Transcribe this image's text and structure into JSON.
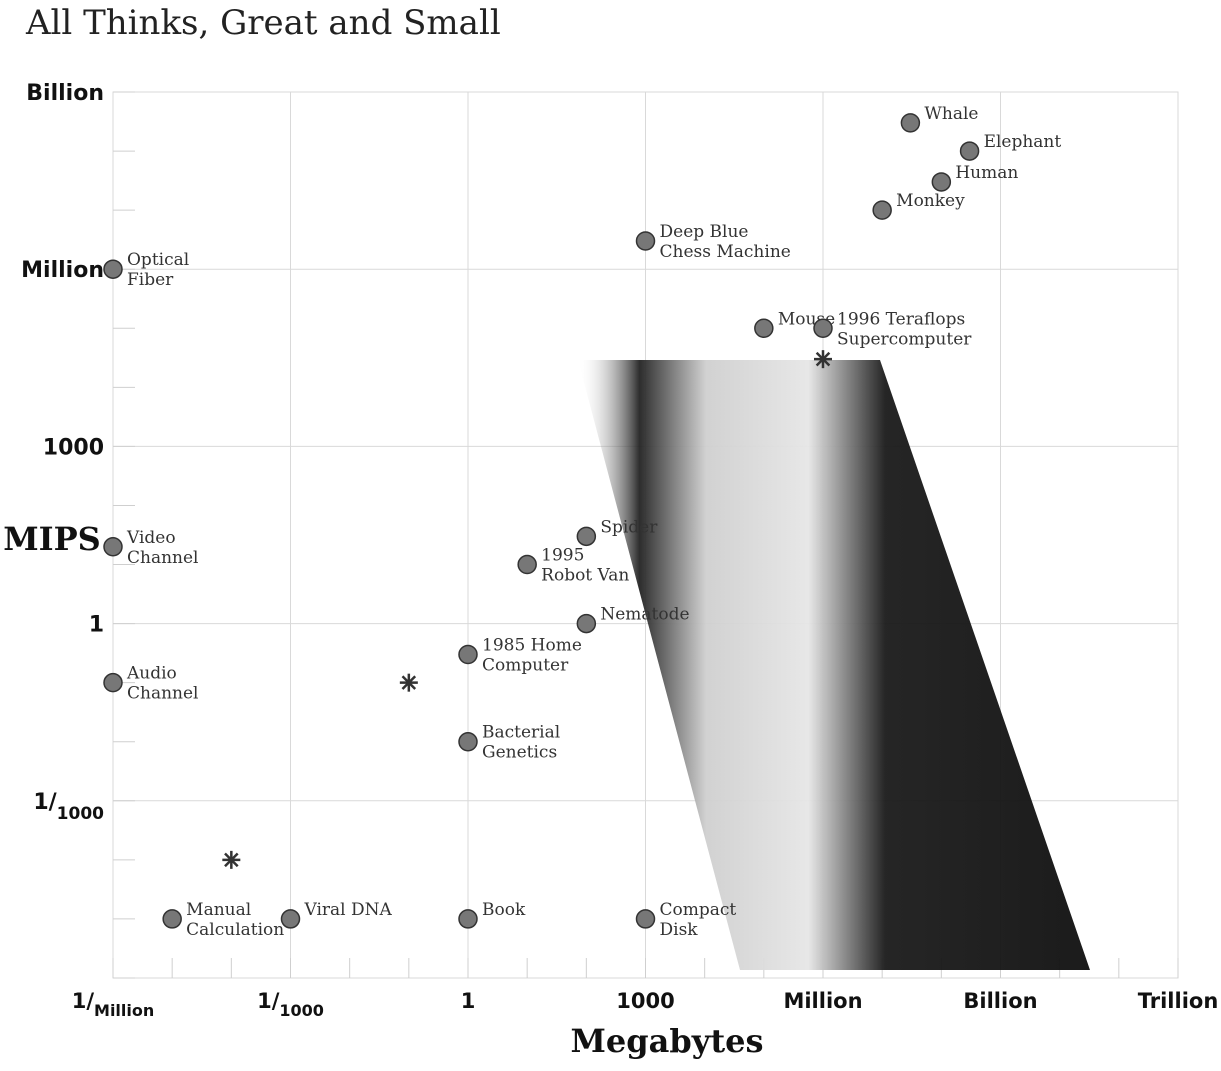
{
  "chart_data": {
    "type": "scatter",
    "title": "All Thinks, Great and Small",
    "xlabel": "Megabytes",
    "ylabel": "MIPS",
    "x_scale": "log",
    "y_scale": "log",
    "xlim": [
      1e-06,
      1000000000000.0
    ],
    "ylim": [
      1e-06,
      1000000000.0
    ],
    "grid": true,
    "x_ticks": [
      {
        "value": 1e-06,
        "main": "1/",
        "sub": "Million"
      },
      {
        "value": 0.001,
        "main": "1/",
        "sub": "1000"
      },
      {
        "value": 1,
        "main": "1",
        "sub": ""
      },
      {
        "value": 1000.0,
        "main": "1000",
        "sub": ""
      },
      {
        "value": 1000000.0,
        "main": "Million",
        "sub": ""
      },
      {
        "value": 1000000000.0,
        "main": "Billion",
        "sub": ""
      },
      {
        "value": 1000000000000.0,
        "main": "Trillion",
        "sub": ""
      }
    ],
    "y_ticks": [
      {
        "value": 1000000000.0,
        "main": "Billion",
        "sub": ""
      },
      {
        "value": 1000000.0,
        "main": "Million",
        "sub": ""
      },
      {
        "value": 1000.0,
        "main": "1000",
        "sub": ""
      },
      {
        "value": 1,
        "main": "1",
        "sub": ""
      },
      {
        "value": 0.001,
        "main": "1/",
        "sub": "1000"
      }
    ],
    "points": [
      {
        "name": "Whale",
        "x": 30000000.0,
        "y": 300000000.0,
        "icon": "whale-icon",
        "lines": [
          "Whale"
        ]
      },
      {
        "name": "Elephant",
        "x": 300000000.0,
        "y": 100000000.0,
        "icon": "elephant-icon",
        "lines": [
          "Elephant"
        ]
      },
      {
        "name": "Human",
        "x": 100000000.0,
        "y": 30000000.0,
        "icon": "human-icon",
        "lines": [
          "Human"
        ]
      },
      {
        "name": "Monkey",
        "x": 10000000.0,
        "y": 10000000.0,
        "icon": "monkey-icon",
        "lines": [
          "Monkey"
        ]
      },
      {
        "name": "Deep Blue Chess Machine",
        "x": 1000,
        "y": 3000000.0,
        "icon": "deep-blue-icon",
        "lines": [
          "Deep Blue",
          "Chess Machine"
        ]
      },
      {
        "name": "Mouse",
        "x": 100000.0,
        "y": 100000.0,
        "icon": "mouse-icon",
        "lines": [
          "Mouse"
        ]
      },
      {
        "name": "1996 Teraflops Supercomputer",
        "x": 1000000.0,
        "y": 100000.0,
        "icon": "supercomputer-icon",
        "lines": [
          "1996 Teraflops",
          "Supercomputer"
        ]
      },
      {
        "name": "Optical Fiber",
        "x": 1e-06,
        "y": 1000000.0,
        "icon": "optical-fiber-icon",
        "lines": [
          "Optical",
          "Fiber"
        ]
      },
      {
        "name": "Spider",
        "x": 100,
        "y": 30,
        "icon": "spider-icon",
        "lines": [
          "Spider"
        ]
      },
      {
        "name": "Video Channel",
        "x": 1e-06,
        "y": 20,
        "icon": "video-channel-icon",
        "lines": [
          "Video",
          "Channel"
        ]
      },
      {
        "name": "1995 Robot Van",
        "x": 10,
        "y": 10,
        "icon": "robot-van-icon",
        "lines": [
          "1995",
          "Robot Van"
        ]
      },
      {
        "name": "Nematode",
        "x": 100,
        "y": 1,
        "icon": "nematode-icon",
        "lines": [
          "Nematode"
        ]
      },
      {
        "name": "1985 Home Computer",
        "x": 1,
        "y": 0.3,
        "icon": "home-computer-icon",
        "lines": [
          "1985 Home",
          "Computer"
        ]
      },
      {
        "name": "Audio Channel",
        "x": 1e-06,
        "y": 0.1,
        "icon": "audio-channel-icon",
        "lines": [
          "Audio",
          "Channel"
        ]
      },
      {
        "name": "Bacterial Genetics",
        "x": 1,
        "y": 0.01,
        "icon": "bacterium-icon",
        "lines": [
          "Bacterial",
          "Genetics"
        ]
      },
      {
        "name": "Manual Calculation",
        "x": 1e-05,
        "y": 1e-05,
        "icon": "hand-writing-icon",
        "lines": [
          "Manual",
          "Calculation"
        ]
      },
      {
        "name": "Viral DNA",
        "x": 0.001,
        "y": 1e-05,
        "icon": "virus-icon",
        "lines": [
          "Viral DNA"
        ]
      },
      {
        "name": "Book",
        "x": 1,
        "y": 1e-05,
        "icon": "book-icon",
        "lines": [
          "Book"
        ]
      },
      {
        "name": "Compact Disk",
        "x": 1000,
        "y": 1e-05,
        "icon": "compact-disk-icon",
        "lines": [
          "Compact",
          "Disk"
        ]
      }
    ],
    "markers": [
      {
        "name": "asterisk-marker",
        "x": 1000000.0,
        "y": 30000.0
      },
      {
        "name": "asterisk-marker",
        "x": 0.1,
        "y": 0.1
      },
      {
        "name": "asterisk-marker",
        "x": 0.0001,
        "y": 0.0001
      }
    ],
    "colors": {
      "grid": "#d9d9d9",
      "text": "#111111",
      "labels": "#333333"
    }
  }
}
